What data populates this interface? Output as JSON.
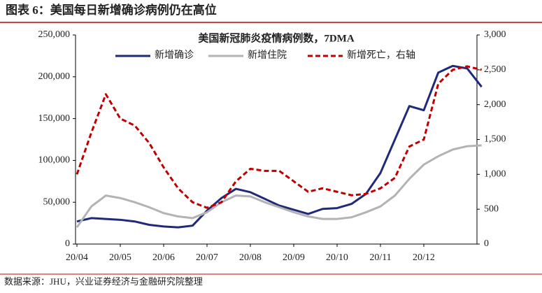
{
  "header": {
    "title": "图表 6：美国每日新增确诊病例仍在高位"
  },
  "chart_data": {
    "type": "line",
    "title": "美国新冠肺炎疫情病例数，7DMA",
    "categories": [
      "20/04",
      null,
      null,
      "20/05",
      null,
      null,
      "20/06",
      null,
      null,
      "20/07",
      null,
      null,
      "20/08",
      null,
      null,
      "20/09",
      null,
      null,
      "20/10",
      null,
      null,
      "20/11",
      null,
      null,
      "20/12",
      null,
      null,
      null,
      null
    ],
    "series": [
      {
        "name": "新增确诊",
        "color": "#1f2a7a",
        "dash": false,
        "axis": "y",
        "values": [
          27000,
          31000,
          30000,
          29000,
          27000,
          23000,
          21000,
          20000,
          22000,
          40000,
          55000,
          66000,
          62000,
          54000,
          46000,
          41000,
          36000,
          42000,
          43000,
          48000,
          60000,
          85000,
          125000,
          165000,
          160000,
          205000,
          213000,
          210000,
          188000
        ]
      },
      {
        "name": "新增住院",
        "color": "#b3b3b3",
        "dash": false,
        "axis": "y",
        "values": [
          20000,
          45000,
          58000,
          55000,
          50000,
          44000,
          37000,
          33000,
          31000,
          38000,
          50000,
          58000,
          57000,
          50000,
          44000,
          38000,
          33000,
          30000,
          30000,
          32000,
          38000,
          45000,
          58000,
          78000,
          95000,
          105000,
          113000,
          117000,
          118000
        ]
      },
      {
        "name": "新增死亡，右轴",
        "color": "#c00000",
        "dash": true,
        "axis": "y2",
        "values": [
          1000,
          1600,
          2150,
          1800,
          1700,
          1450,
          1100,
          800,
          600,
          520,
          600,
          900,
          1080,
          1050,
          1050,
          900,
          750,
          800,
          750,
          700,
          720,
          800,
          950,
          1400,
          1500,
          2300,
          2500,
          2550,
          2500
        ]
      }
    ],
    "ylim": [
      0,
      250000
    ],
    "yticks": [
      0,
      {
        "value": 50000,
        "label": "50,000"
      },
      {
        "value": 100000,
        "label": "100,000"
      },
      {
        "value": 150000,
        "label": "150,000"
      },
      {
        "value": 200000,
        "label": "200,000"
      },
      {
        "value": 250000,
        "label": "250,000"
      }
    ],
    "y2lim": [
      0,
      3000
    ],
    "y2ticks": [
      0,
      500,
      {
        "value": 1000,
        "label": "1,000"
      },
      {
        "value": 1500,
        "label": "1,500"
      },
      {
        "value": 2000,
        "label": "2,000"
      },
      {
        "value": 2500,
        "label": "2,500"
      },
      {
        "value": 3000,
        "label": "3,000"
      }
    ]
  },
  "source": "数据来源：JHU，兴业证券经济与金融研究院整理"
}
